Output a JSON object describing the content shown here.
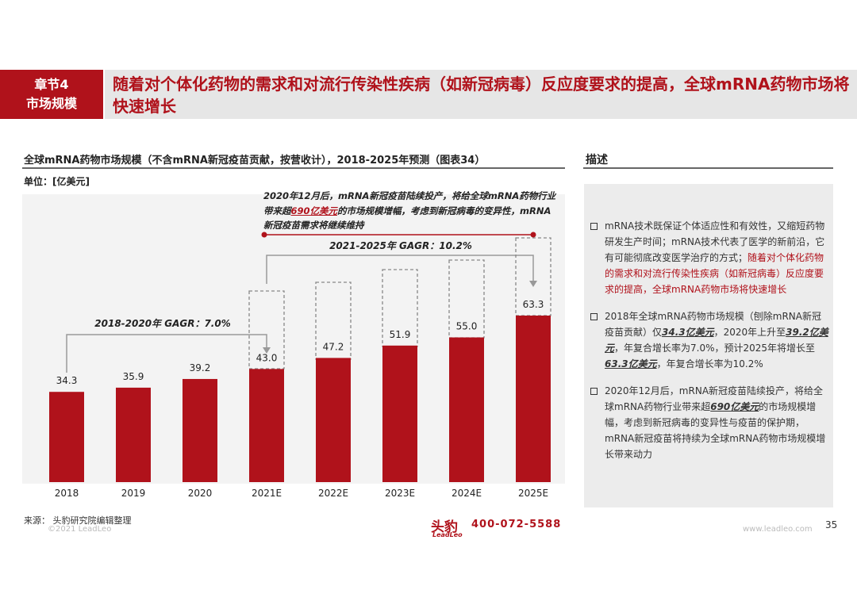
{
  "header": {
    "section": "章节4",
    "section_name": "市场规模",
    "title": "随着对个体化药物的需求和对流行传染性疾病（如新冠病毒）反应度要求的提高，全球mRNA药物市场将快速增长"
  },
  "chart_data": {
    "type": "bar",
    "title": "全球mRNA药物市场规模（不含mRNA新冠疫苗贡献，按营收计），2018-2025年预测（图表34）",
    "unit": "单位：[亿美元]",
    "categories": [
      "2018",
      "2019",
      "2020",
      "2021E",
      "2022E",
      "2023E",
      "2024E",
      "2025E"
    ],
    "values": [
      34.3,
      35.9,
      39.2,
      43.0,
      47.2,
      51.9,
      55.0,
      63.3
    ],
    "value_labels": [
      "34.3",
      "35.9",
      "39.2",
      "43.0",
      "47.2",
      "51.9",
      "55.0",
      "63.3"
    ],
    "color": "#b0121b",
    "annotations": {
      "cagr_1": "2018-2020年   GAGR：7.0%",
      "cagr_2": "2021-2025年     GAGR：10.2%",
      "note": [
        {
          "text": "2020年12月后，mRNA新冠疫苗陆续投产，将给全球mRNA药物行业带来超",
          "emphasis": false
        },
        {
          "text": "690亿美元",
          "emphasis": true
        },
        {
          "text": "的市场规模增幅，考虑到新冠病毒的变异性，mRNA新冠疫苗需求将继续维持",
          "emphasis": false
        }
      ]
    },
    "source": "来源： 头豹研究院编辑整理"
  },
  "description": {
    "title": "描述",
    "items": [
      [
        {
          "text": "mRNA技术既保证个体适应性和有效性，又缩短药物研发生产时间；mRNA技术代表了医学的新前沿，它有可能彻底改变医学治疗的方式；",
          "style": "plain"
        },
        {
          "text": "随着对个体化药物的需求和对流行传染性疾病（如新冠病毒）反应度要求的提高，全球mRNA药物市场将快速增长",
          "style": "red"
        }
      ],
      [
        {
          "text": "2018年全球mRNA药物市场规模（刨除mRNA新冠疫苗贡献）仅",
          "style": "plain"
        },
        {
          "text": "34.3亿美元",
          "style": "key"
        },
        {
          "text": "，2020年上升至",
          "style": "plain"
        },
        {
          "text": "39.2亿美元",
          "style": "key"
        },
        {
          "text": "，年复合增长率为7.0%，预计2025年将增长至",
          "style": "plain"
        },
        {
          "text": "63.3亿美元",
          "style": "key"
        },
        {
          "text": "，年复合增长率为10.2%",
          "style": "plain"
        }
      ],
      [
        {
          "text": "2020年12月后，mRNA新冠疫苗陆续投产，将给全球mRNA药物行业带来超",
          "style": "plain"
        },
        {
          "text": "690亿美元",
          "style": "key"
        },
        {
          "text": "的市场规模增幅，考虑到新冠病毒的变异性与疫苗的保护期，mRNA新冠疫苗将持续为全球mRNA药物市场规模增长带来动力",
          "style": "plain"
        }
      ]
    ]
  },
  "footer": {
    "copyright": "©2021 LeadLeo",
    "logo": "头豹",
    "logo_sub": "LeadLeo",
    "phone": "400-072-5588",
    "website": "www.leadleo.com",
    "page": "35"
  }
}
